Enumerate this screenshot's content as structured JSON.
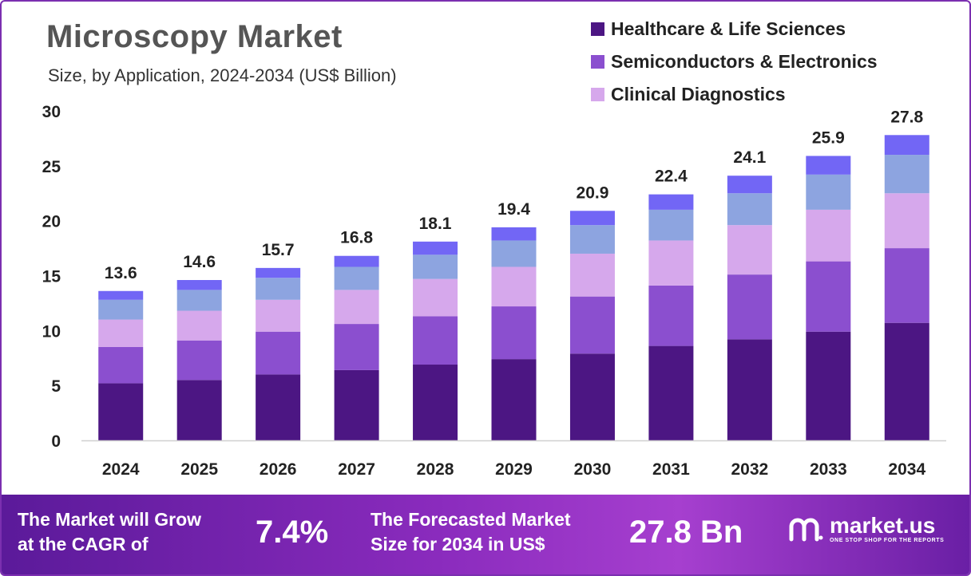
{
  "header": {
    "title": "Microscopy Market",
    "subtitle": "Size, by Application, 2024-2034 (US$ Billion)"
  },
  "legend": [
    {
      "label": "Healthcare & Life Sciences",
      "color": "#4c1683"
    },
    {
      "label": "Semiconductors & Electronics",
      "color": "#8b4fcf"
    },
    {
      "label": "Clinical Diagnostics",
      "color": "#d6a8ec"
    }
  ],
  "chart_data": {
    "type": "bar",
    "stacked": true,
    "categories": [
      "2024",
      "2025",
      "2026",
      "2027",
      "2028",
      "2029",
      "2030",
      "2031",
      "2032",
      "2033",
      "2034"
    ],
    "ylim": [
      0,
      30
    ],
    "yticks": [
      0,
      5,
      10,
      15,
      20,
      25,
      30
    ],
    "totals": [
      13.6,
      14.6,
      15.7,
      16.8,
      18.1,
      19.4,
      20.9,
      22.4,
      24.1,
      25.9,
      27.8
    ],
    "series": [
      {
        "name": "Healthcare & Life Sciences",
        "color": "#4c1683",
        "values": [
          5.2,
          5.5,
          6.0,
          6.4,
          6.9,
          7.4,
          7.9,
          8.6,
          9.2,
          9.9,
          10.7
        ]
      },
      {
        "name": "Semiconductors & Electronics",
        "color": "#8b4fcf",
        "values": [
          3.3,
          3.6,
          3.9,
          4.2,
          4.4,
          4.8,
          5.2,
          5.5,
          5.9,
          6.4,
          6.8
        ]
      },
      {
        "name": "Clinical Diagnostics",
        "color": "#d6a8ec",
        "values": [
          2.5,
          2.7,
          2.9,
          3.1,
          3.4,
          3.6,
          3.9,
          4.1,
          4.5,
          4.7,
          5.0
        ]
      },
      {
        "color": "#8da4e0",
        "values": [
          1.8,
          1.9,
          2.0,
          2.1,
          2.2,
          2.4,
          2.6,
          2.8,
          2.9,
          3.2,
          3.5
        ]
      },
      {
        "color": "#7266f5",
        "values": [
          0.8,
          0.9,
          0.9,
          1.0,
          1.2,
          1.2,
          1.3,
          1.4,
          1.6,
          1.7,
          1.8
        ]
      }
    ]
  },
  "footer": {
    "cagr_line1": "The Market will Grow",
    "cagr_line2": "at the CAGR of",
    "cagr_value": "7.4%",
    "forecast_line1": "The Forecasted Market",
    "forecast_line2": "Size for 2034 in US$",
    "forecast_value": "27.8 Bn",
    "brand_name": "market.us",
    "brand_tagline": "ONE STOP SHOP FOR THE REPORTS"
  }
}
